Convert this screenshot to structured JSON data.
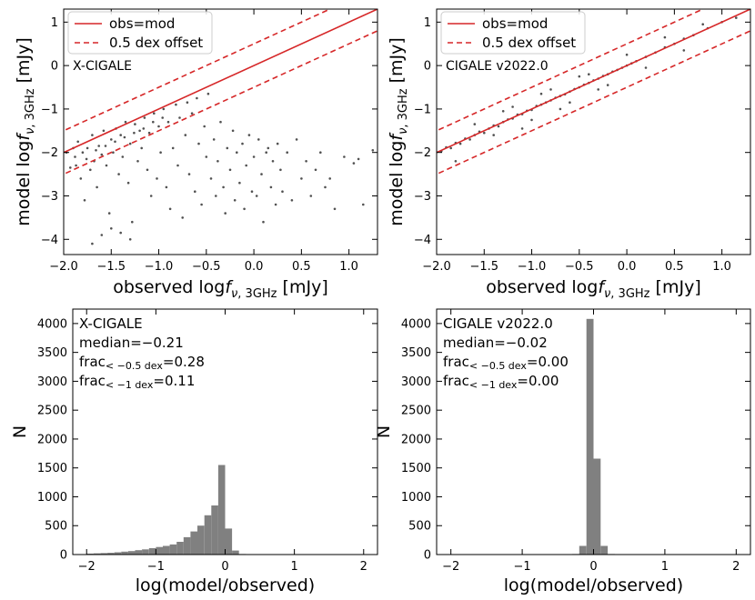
{
  "chart_data": [
    {
      "type": "scatter",
      "panel": "top-left",
      "annotation": "X-CIGALE",
      "xlabel": "observed log",
      "xlabel_sym": "f",
      "xlabel_sub": "ν, 3GHz",
      "xlabel_unit": "[mJy]",
      "ylabel": "model log",
      "ylabel_sym": "f",
      "ylabel_sub": "ν, 3GHz",
      "ylabel_unit": "[mJy]",
      "xlim": [
        -2.0,
        1.3
      ],
      "ylim": [
        -4.35,
        1.3
      ],
      "xticks": [
        "-2.0",
        "-1.5",
        "-1.0",
        "-0.5",
        "0.0",
        "0.5",
        "1.0"
      ],
      "yticks": [
        "-4",
        "-3",
        "-2",
        "-1",
        "0",
        "1"
      ],
      "legend": {
        "placement": "top-left",
        "entries": [
          "obs=mod",
          "0.5 dex offset"
        ]
      },
      "lines": [
        {
          "name": "obs=mod",
          "style": "solid",
          "color": "#d62728",
          "offset": 0
        },
        {
          "name": "0.5 dex offset",
          "style": "dashed",
          "color": "#d62728",
          "offset": 0.5
        },
        {
          "name": "0.5 dex offset",
          "style": "dashed",
          "color": "#d62728",
          "offset": -0.5
        }
      ],
      "points": [
        [
          -1.93,
          -2.35
        ],
        [
          -1.88,
          -2.1
        ],
        [
          -1.85,
          -1.75
        ],
        [
          -1.82,
          -2.6
        ],
        [
          -1.8,
          -2.0
        ],
        [
          -1.78,
          -3.1
        ],
        [
          -1.75,
          -1.9
        ],
        [
          -1.72,
          -2.4
        ],
        [
          -1.7,
          -1.6
        ],
        [
          -1.68,
          -2.2
        ],
        [
          -1.65,
          -2.8
        ],
        [
          -1.63,
          -1.85
        ],
        [
          -1.6,
          -2.05
        ],
        [
          -1.58,
          -1.5
        ],
        [
          -1.55,
          -2.3
        ],
        [
          -1.52,
          -3.4
        ],
        [
          -1.5,
          -1.7
        ],
        [
          -1.48,
          -2.0
        ],
        [
          -1.45,
          -1.45
        ],
        [
          -1.42,
          -2.5
        ],
        [
          -1.4,
          -1.6
        ],
        [
          -1.38,
          -2.1
        ],
        [
          -1.35,
          -1.3
        ],
        [
          -1.32,
          -2.7
        ],
        [
          -1.3,
          -1.8
        ],
        [
          -1.28,
          -3.6
        ],
        [
          -1.25,
          -1.35
        ],
        [
          -1.22,
          -2.2
        ],
        [
          -1.2,
          -1.5
        ],
        [
          -1.18,
          -1.9
        ],
        [
          -1.15,
          -1.2
        ],
        [
          -1.12,
          -2.4
        ],
        [
          -1.1,
          -1.55
        ],
        [
          -1.08,
          -3.0
        ],
        [
          -1.05,
          -1.1
        ],
        [
          -1.02,
          -2.6
        ],
        [
          -1.0,
          -1.4
        ],
        [
          -0.98,
          -2.0
        ],
        [
          -0.95,
          -1.0
        ],
        [
          -0.92,
          -2.8
        ],
        [
          -0.9,
          -1.3
        ],
        [
          -0.88,
          -3.3
        ],
        [
          -0.85,
          -1.9
        ],
        [
          -0.82,
          -0.9
        ],
        [
          -0.8,
          -2.3
        ],
        [
          -0.78,
          -1.2
        ],
        [
          -0.75,
          -3.5
        ],
        [
          -0.72,
          -1.6
        ],
        [
          -0.7,
          -0.85
        ],
        [
          -0.68,
          -2.5
        ],
        [
          -0.65,
          -1.1
        ],
        [
          -0.62,
          -2.9
        ],
        [
          -0.6,
          -0.75
        ],
        [
          -0.58,
          -1.8
        ],
        [
          -0.55,
          -3.2
        ],
        [
          -0.52,
          -1.4
        ],
        [
          -0.5,
          -2.1
        ],
        [
          -0.48,
          -0.65
        ],
        [
          -0.45,
          -2.6
        ],
        [
          -0.42,
          -1.7
        ],
        [
          -0.4,
          -3.0
        ],
        [
          -0.38,
          -2.2
        ],
        [
          -0.35,
          -1.3
        ],
        [
          -0.32,
          -2.8
        ],
        [
          -0.3,
          -3.4
        ],
        [
          -0.28,
          -1.9
        ],
        [
          -0.25,
          -2.4
        ],
        [
          -0.22,
          -1.5
        ],
        [
          -0.2,
          -3.1
        ],
        [
          -0.18,
          -2.0
        ],
        [
          -0.15,
          -2.7
        ],
        [
          -0.12,
          -1.8
        ],
        [
          -0.1,
          -3.3
        ],
        [
          -0.08,
          -2.3
        ],
        [
          -0.05,
          -1.6
        ],
        [
          -0.02,
          -2.9
        ],
        [
          0.0,
          -2.1
        ],
        [
          0.03,
          -3.0
        ],
        [
          0.05,
          -1.7
        ],
        [
          0.08,
          -2.5
        ],
        [
          0.1,
          -3.6
        ],
        [
          0.13,
          -2.0
        ],
        [
          0.15,
          -1.9
        ],
        [
          0.18,
          -2.8
        ],
        [
          0.2,
          -2.2
        ],
        [
          0.23,
          -3.2
        ],
        [
          0.25,
          -1.8
        ],
        [
          0.28,
          -2.4
        ],
        [
          0.3,
          -2.9
        ],
        [
          0.35,
          -2.0
        ],
        [
          0.4,
          -3.1
        ],
        [
          0.45,
          -1.7
        ],
        [
          0.5,
          -2.6
        ],
        [
          0.55,
          -2.2
        ],
        [
          0.6,
          -3.0
        ],
        [
          0.65,
          -2.4
        ],
        [
          0.7,
          -2.0
        ],
        [
          0.75,
          -2.8
        ],
        [
          0.8,
          -2.6
        ],
        [
          0.85,
          -3.3
        ],
        [
          0.95,
          -2.1
        ],
        [
          1.05,
          -2.25
        ],
        [
          1.1,
          -2.15
        ],
        [
          1.15,
          -3.2
        ],
        [
          1.25,
          -1.95
        ],
        [
          -1.97,
          -2.0
        ],
        [
          -1.9,
          -1.9
        ],
        [
          -1.87,
          -2.3
        ],
        [
          -1.76,
          -2.15
        ],
        [
          -1.66,
          -1.95
        ],
        [
          -1.56,
          -1.85
        ],
        [
          -1.46,
          -1.75
        ],
        [
          -1.36,
          -1.65
        ],
        [
          -1.26,
          -1.55
        ],
        [
          -1.16,
          -1.45
        ],
        [
          -1.06,
          -1.3
        ],
        [
          -0.96,
          -1.2
        ],
        [
          -1.6,
          -3.9
        ],
        [
          -1.7,
          -4.1
        ],
        [
          -1.5,
          -3.75
        ],
        [
          -1.4,
          -3.85
        ],
        [
          -1.3,
          -4.0
        ]
      ]
    },
    {
      "type": "scatter",
      "panel": "top-right",
      "annotation": "CIGALE v2022.0",
      "xlabel": "observed log",
      "xlabel_sym": "f",
      "xlabel_sub": "ν, 3GHz",
      "xlabel_unit": "[mJy]",
      "ylabel": "model log",
      "ylabel_sym": "f",
      "ylabel_sub": "ν, 3GHz",
      "ylabel_unit": "[mJy]",
      "xlim": [
        -2.0,
        1.3
      ],
      "ylim": [
        -4.35,
        1.3
      ],
      "xticks": [
        "-2.0",
        "-1.5",
        "-1.0",
        "-0.5",
        "0.0",
        "0.5",
        "1.0"
      ],
      "yticks": [
        "-4",
        "-3",
        "-2",
        "-1",
        "0",
        "1"
      ],
      "legend": {
        "placement": "top-left",
        "entries": [
          "obs=mod",
          "0.5 dex offset"
        ]
      },
      "lines": [
        {
          "name": "obs=mod",
          "style": "solid",
          "color": "#d62728",
          "offset": 0
        },
        {
          "name": "0.5 dex offset",
          "style": "dashed",
          "color": "#d62728",
          "offset": 0.5
        },
        {
          "name": "0.5 dex offset",
          "style": "dashed",
          "color": "#d62728",
          "offset": -0.5
        }
      ],
      "points": [
        [
          -1.95,
          -1.97
        ],
        [
          -1.9,
          -1.88
        ],
        [
          -1.85,
          -1.9
        ],
        [
          -1.8,
          -1.78
        ],
        [
          -1.75,
          -1.8
        ],
        [
          -1.7,
          -1.68
        ],
        [
          -1.65,
          -1.7
        ],
        [
          -1.6,
          -1.6
        ],
        [
          -1.55,
          -1.52
        ],
        [
          -1.5,
          -1.55
        ],
        [
          -1.45,
          -1.45
        ],
        [
          -1.4,
          -1.38
        ],
        [
          -1.35,
          -1.4
        ],
        [
          -1.3,
          -1.3
        ],
        [
          -1.25,
          -1.24
        ],
        [
          -1.2,
          -1.22
        ],
        [
          -1.15,
          -1.13
        ],
        [
          -1.1,
          -1.12
        ],
        [
          -1.05,
          -1.04
        ],
        [
          -1.0,
          -1.02
        ],
        [
          -0.95,
          -0.93
        ],
        [
          -0.9,
          -0.9
        ],
        [
          -0.85,
          -0.85
        ],
        [
          -0.8,
          -0.8
        ],
        [
          -0.75,
          -0.74
        ],
        [
          -0.7,
          -0.7
        ],
        [
          -0.65,
          -0.66
        ],
        [
          -0.6,
          -0.6
        ],
        [
          -0.55,
          -0.54
        ],
        [
          -0.5,
          -0.5
        ],
        [
          -0.45,
          -0.44
        ],
        [
          -0.4,
          -0.4
        ],
        [
          -0.35,
          -0.34
        ],
        [
          -0.3,
          -0.3
        ],
        [
          -0.25,
          -0.24
        ],
        [
          -0.2,
          -0.2
        ],
        [
          -0.15,
          -0.14
        ],
        [
          -0.1,
          -0.1
        ],
        [
          -0.05,
          -0.05
        ],
        [
          0.0,
          0.0
        ],
        [
          0.05,
          0.05
        ],
        [
          0.1,
          0.1
        ],
        [
          0.2,
          0.2
        ],
        [
          0.3,
          0.3
        ],
        [
          0.4,
          0.42
        ],
        [
          0.5,
          0.5
        ],
        [
          0.6,
          0.62
        ],
        [
          0.7,
          0.7
        ],
        [
          0.85,
          0.86
        ],
        [
          1.0,
          1.0
        ],
        [
          1.15,
          1.1
        ],
        [
          -1.8,
          -2.2
        ],
        [
          -1.6,
          -1.35
        ],
        [
          -1.4,
          -1.6
        ],
        [
          -1.2,
          -0.95
        ],
        [
          -1.0,
          -1.25
        ],
        [
          -0.8,
          -0.55
        ],
        [
          -0.6,
          -0.85
        ],
        [
          -0.4,
          -0.2
        ],
        [
          -0.2,
          -0.45
        ],
        [
          0.0,
          0.25
        ],
        [
          0.2,
          -0.05
        ],
        [
          0.4,
          0.65
        ],
        [
          0.6,
          0.35
        ],
        [
          0.8,
          0.95
        ],
        [
          -1.1,
          -1.45
        ],
        [
          -1.3,
          -1.05
        ],
        [
          -0.9,
          -0.65
        ],
        [
          -0.7,
          -1.0
        ],
        [
          -0.5,
          -0.25
        ],
        [
          -0.3,
          -0.55
        ]
      ]
    },
    {
      "type": "histogram",
      "panel": "bottom-left",
      "annotation_lines": [
        "X-CIGALE",
        "median=−0.21",
        "frac",
        "frac"
      ],
      "frac1_sub": "< −0.5 dex",
      "frac1_val": "=0.28",
      "frac2_sub": "< −1 dex",
      "frac2_val": "=0.11",
      "xlabel": "log(model/observed)",
      "ylabel": "N",
      "xlim": [
        -2.2,
        2.2
      ],
      "ylim": [
        0,
        4250
      ],
      "xticks": [
        "-2",
        "-1",
        "0",
        "1",
        "2"
      ],
      "yticks": [
        "0",
        "500",
        "1000",
        "1500",
        "2000",
        "2500",
        "3000",
        "3500",
        "4000"
      ],
      "color": "#808080",
      "bin_width": 0.1,
      "bins": [
        [
          -2.0,
          15
        ],
        [
          -1.9,
          20
        ],
        [
          -1.8,
          25
        ],
        [
          -1.7,
          30
        ],
        [
          -1.6,
          40
        ],
        [
          -1.5,
          50
        ],
        [
          -1.4,
          60
        ],
        [
          -1.3,
          75
        ],
        [
          -1.2,
          90
        ],
        [
          -1.1,
          110
        ],
        [
          -1.0,
          130
        ],
        [
          -0.9,
          150
        ],
        [
          -0.8,
          175
        ],
        [
          -0.7,
          220
        ],
        [
          -0.6,
          300
        ],
        [
          -0.5,
          400
        ],
        [
          -0.4,
          500
        ],
        [
          -0.3,
          680
        ],
        [
          -0.2,
          850
        ],
        [
          -0.1,
          1550
        ],
        [
          0.0,
          450
        ],
        [
          0.1,
          70
        ],
        [
          0.2,
          10
        ]
      ]
    },
    {
      "type": "histogram",
      "panel": "bottom-right",
      "annotation_lines": [
        "CIGALE v2022.0",
        "median=−0.02",
        "frac",
        "frac"
      ],
      "frac1_sub": "< −0.5 dex",
      "frac1_val": "=0.00",
      "frac2_sub": "< −1 dex",
      "frac2_val": "=0.00",
      "xlabel": "log(model/observed)",
      "ylabel": "N",
      "xlim": [
        -2.2,
        2.2
      ],
      "ylim": [
        0,
        4250
      ],
      "xticks": [
        "-2",
        "-1",
        "0",
        "1",
        "2"
      ],
      "yticks": [
        "0",
        "500",
        "1000",
        "1500",
        "2000",
        "2500",
        "3000",
        "3500",
        "4000"
      ],
      "color": "#808080",
      "bin_width": 0.1,
      "bins": [
        [
          -0.3,
          10
        ],
        [
          -0.2,
          150
        ],
        [
          -0.1,
          4080
        ],
        [
          0.0,
          1660
        ],
        [
          0.1,
          150
        ],
        [
          0.2,
          10
        ]
      ]
    }
  ]
}
